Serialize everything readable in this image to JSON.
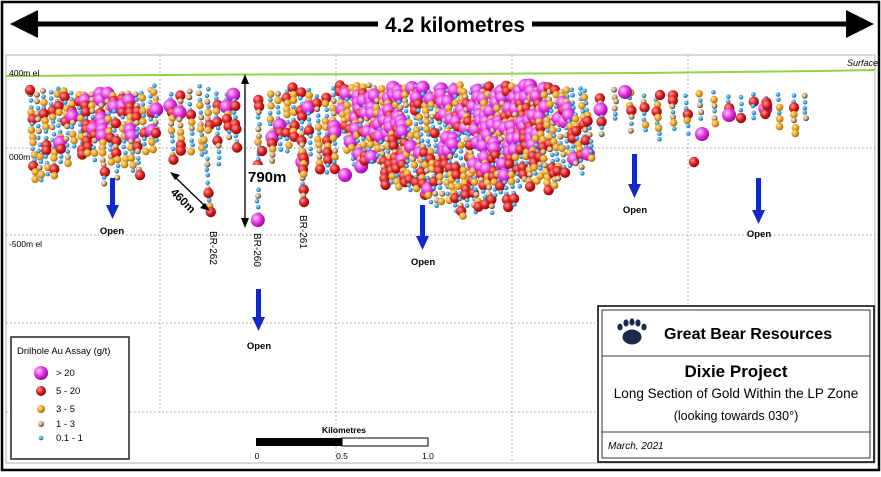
{
  "header": {
    "span_label": "4.2 kilometres"
  },
  "elevations": {
    "el_400": "400m el",
    "el_000": "000m el",
    "el_500": "-500m el",
    "surface": "Surface"
  },
  "annotations": {
    "depth_790": "790m",
    "dist_460": "460m"
  },
  "drillholes": [
    "BR-262",
    "BR-260",
    "BR-261"
  ],
  "open_label": "Open",
  "legend": {
    "title": "Drilhole Au Assay (g/t)",
    "items": [
      {
        "label": "> 20",
        "color": "#e22ee0"
      },
      {
        "label": "5 - 20",
        "color": "#d81c1c"
      },
      {
        "label": "3 - 5",
        "color": "#e8a224"
      },
      {
        "label": "1 - 3",
        "color": "#caa070"
      },
      {
        "label": "0.1 - 1",
        "color": "#3a9ee0"
      }
    ]
  },
  "scale": {
    "title": "Kilometres",
    "ticks": [
      "0",
      "0.5",
      "1.0"
    ]
  },
  "title_block": {
    "company": "Great Bear Resources",
    "project": "Dixie Project",
    "subtitle": "Long Section of Gold Within the LP Zone",
    "view": "(looking towards 030°)",
    "date": "March, 2021"
  },
  "colors": {
    "surface_line": "#8fd44a",
    "arrow": "#1428c8",
    "grid": "#9a9a9a"
  }
}
